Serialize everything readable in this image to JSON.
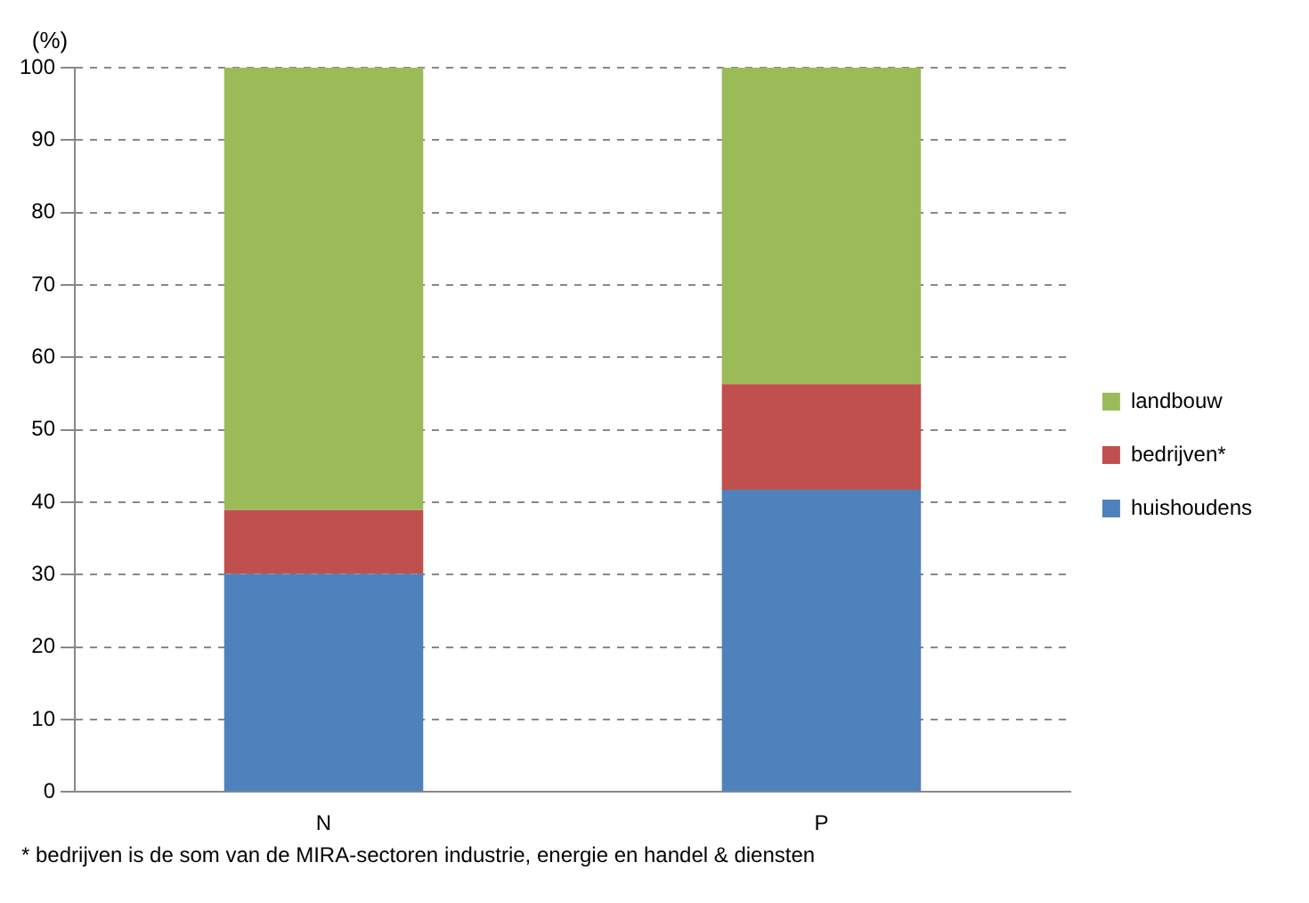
{
  "chart_data": {
    "type": "bar",
    "stacked": true,
    "ylabel": "(%)",
    "categories": [
      "N",
      "P"
    ],
    "series": [
      {
        "name": "huishoudens",
        "color": "#4f81bd",
        "values": [
          30.1,
          41.7
        ]
      },
      {
        "name": "bedrijven*",
        "color": "#c0504d",
        "values": [
          8.8,
          14.6
        ]
      },
      {
        "name": "landbouw",
        "color": "#9bbb59",
        "values": [
          61.1,
          43.7
        ]
      }
    ],
    "ylim": [
      0,
      100
    ],
    "yticks": [
      0,
      10,
      20,
      30,
      40,
      50,
      60,
      70,
      80,
      90,
      100
    ],
    "grid": "y",
    "legend": "right",
    "annotations": [
      "* bedrijven is de som van de MIRA-sectoren industrie, energie en handel & diensten"
    ]
  }
}
